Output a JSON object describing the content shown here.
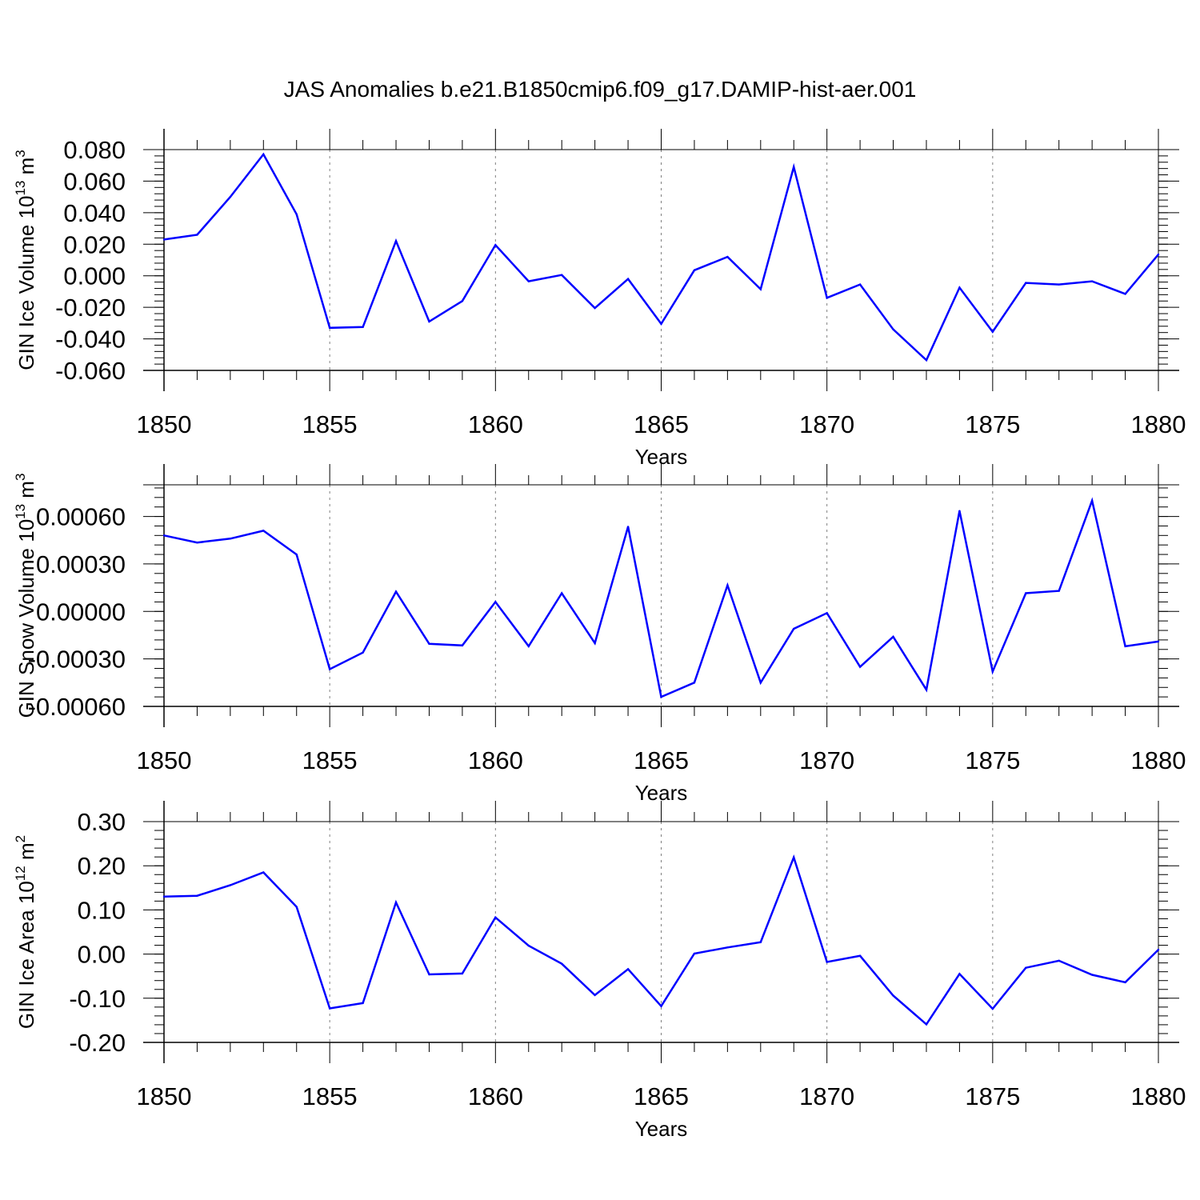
{
  "title": "JAS Anomalies b.e21.B1850cmip6.f09_g17.DAMIP-hist-aer.001",
  "colors": {
    "line": "#0000ff",
    "axis": "#000000",
    "grid": "#808080"
  },
  "chart_data": [
    {
      "type": "line",
      "ylabel": "GIN Ice Volume 10",
      "ylabel_exp": "13",
      "ylabel_unit": " m",
      "ylabel_unit_exp": "3",
      "xlabel": "Years",
      "xlim": [
        1850,
        1880
      ],
      "ylim": [
        -0.06,
        0.08
      ],
      "grid": "vertical dashed",
      "xticks": [
        "1850",
        "1855",
        "1860",
        "1865",
        "1870",
        "1875",
        "1880"
      ],
      "yticks": [
        "0.080",
        "0.060",
        "0.040",
        "0.020",
        "0.000",
        "-0.020",
        "-0.040",
        "-0.060"
      ],
      "x": [
        1850,
        1851,
        1852,
        1853,
        1854,
        1855,
        1856,
        1857,
        1858,
        1859,
        1860,
        1861,
        1862,
        1863,
        1864,
        1865,
        1866,
        1867,
        1868,
        1869,
        1870,
        1871,
        1872,
        1873,
        1874,
        1875,
        1876,
        1877,
        1878,
        1879,
        1880
      ],
      "values": [
        0.023,
        0.026,
        0.05,
        0.077,
        0.039,
        -0.033,
        -0.0325,
        0.022,
        -0.029,
        -0.016,
        0.0195,
        -0.0035,
        0.0005,
        -0.0205,
        -0.002,
        -0.0305,
        0.0035,
        0.012,
        -0.0085,
        0.069,
        -0.014,
        -0.0055,
        -0.034,
        -0.0535,
        -0.0075,
        -0.0355,
        -0.0045,
        -0.0055,
        -0.0035,
        -0.0115,
        0.0135
      ]
    },
    {
      "type": "line",
      "ylabel": "GIN Snow Volume 10",
      "ylabel_exp": "13",
      "ylabel_unit": " m",
      "ylabel_unit_exp": "3",
      "xlabel": "Years",
      "xlim": [
        1850,
        1880
      ],
      "ylim": [
        -0.0006,
        0.0008
      ],
      "grid": "vertical dashed",
      "xticks": [
        "1850",
        "1855",
        "1860",
        "1865",
        "1870",
        "1875",
        "1880"
      ],
      "yticks": [
        "0.00060",
        "0.00030",
        "0.00000",
        "-0.00030",
        "-0.00060"
      ],
      "x": [
        1850,
        1851,
        1852,
        1853,
        1854,
        1855,
        1856,
        1857,
        1858,
        1859,
        1860,
        1861,
        1862,
        1863,
        1864,
        1865,
        1866,
        1867,
        1868,
        1869,
        1870,
        1871,
        1872,
        1873,
        1874,
        1875,
        1876,
        1877,
        1878,
        1879,
        1880
      ],
      "values": [
        0.00048,
        0.000435,
        0.00046,
        0.00051,
        0.00036,
        -0.000365,
        -0.00026,
        0.000125,
        -0.000205,
        -0.000215,
        6e-05,
        -0.00022,
        0.000115,
        -0.0002,
        0.000535,
        -0.00054,
        -0.00045,
        0.000165,
        -0.00045,
        -0.00011,
        -1e-05,
        -0.00035,
        -0.00016,
        -0.000495,
        0.000635,
        -0.00038,
        0.000115,
        0.00013,
        0.0007,
        -0.00022,
        -0.00019
      ]
    },
    {
      "type": "line",
      "ylabel": "GIN Ice Area 10",
      "ylabel_exp": "12",
      "ylabel_unit": " m",
      "ylabel_unit_exp": "2",
      "xlabel": "Years",
      "xlim": [
        1850,
        1880
      ],
      "ylim": [
        -0.2,
        0.3
      ],
      "grid": "vertical dashed",
      "xticks": [
        "1850",
        "1855",
        "1860",
        "1865",
        "1870",
        "1875",
        "1880"
      ],
      "yticks": [
        "0.30",
        "0.20",
        "0.10",
        "0.00",
        "-0.10",
        "-0.20"
      ],
      "x": [
        1850,
        1851,
        1852,
        1853,
        1854,
        1855,
        1856,
        1857,
        1858,
        1859,
        1860,
        1861,
        1862,
        1863,
        1864,
        1865,
        1866,
        1867,
        1868,
        1869,
        1870,
        1871,
        1872,
        1873,
        1874,
        1875,
        1876,
        1877,
        1878,
        1879,
        1880
      ],
      "values": [
        0.13,
        0.132,
        0.156,
        0.185,
        0.107,
        -0.123,
        -0.111,
        0.117,
        -0.046,
        -0.044,
        0.083,
        0.019,
        -0.022,
        -0.093,
        -0.034,
        -0.118,
        0.001,
        0.015,
        0.027,
        0.219,
        -0.018,
        -0.004,
        -0.094,
        -0.159,
        -0.045,
        -0.124,
        -0.031,
        -0.015,
        -0.047,
        -0.064,
        0.01
      ]
    }
  ]
}
